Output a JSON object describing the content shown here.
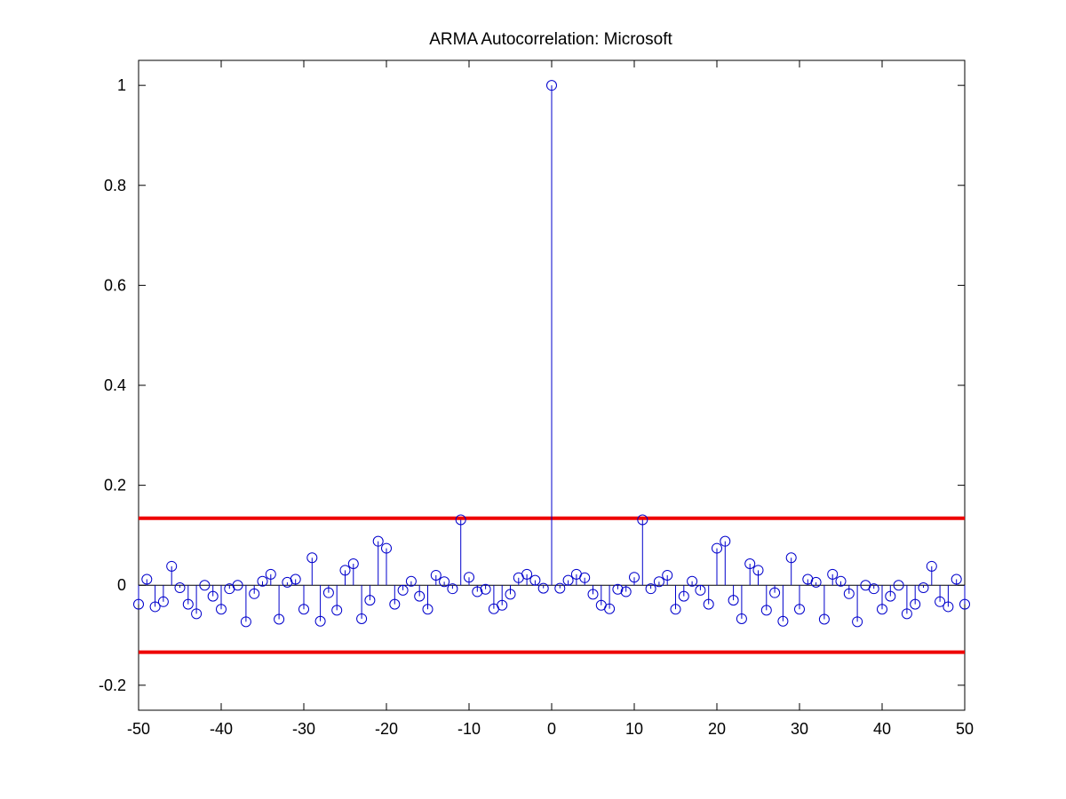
{
  "chart_data": {
    "type": "stem",
    "title": "ARMA Autocorrelation: Microsoft",
    "xlabel": "",
    "ylabel": "",
    "xlim": [
      -50,
      50
    ],
    "ylim": [
      -0.25,
      1.05
    ],
    "xticks": [
      -50,
      -40,
      -30,
      -20,
      -10,
      0,
      10,
      20,
      30,
      40,
      50
    ],
    "yticks": [
      -0.2,
      0,
      0.2,
      0.4,
      0.6,
      0.8,
      1
    ],
    "ytick_labels": [
      "-0.2",
      "0",
      "0.2",
      "0.4",
      "0.6",
      "0.8",
      "1"
    ],
    "grid": false,
    "series": [
      {
        "color": "#0000cc",
        "marker": "circle",
        "x": [
          -50,
          -49,
          -48,
          -47,
          -46,
          -45,
          -44,
          -43,
          -42,
          -41,
          -40,
          -39,
          -38,
          -37,
          -36,
          -35,
          -34,
          -33,
          -32,
          -31,
          -30,
          -29,
          -28,
          -27,
          -26,
          -25,
          -24,
          -23,
          -22,
          -21,
          -20,
          -19,
          -18,
          -17,
          -16,
          -15,
          -14,
          -13,
          -12,
          -11,
          -10,
          -9,
          -8,
          -7,
          -6,
          -5,
          -4,
          -3,
          -2,
          -1,
          0,
          1,
          2,
          3,
          4,
          5,
          6,
          7,
          8,
          9,
          10,
          11,
          12,
          13,
          14,
          15,
          16,
          17,
          18,
          19,
          20,
          21,
          22,
          23,
          24,
          25,
          26,
          27,
          28,
          29,
          30,
          31,
          32,
          33,
          34,
          35,
          36,
          37,
          38,
          39,
          40,
          41,
          42,
          43,
          44,
          45,
          46,
          47,
          48,
          49,
          50
        ],
        "y": [
          -0.038,
          0.012,
          -0.043,
          -0.033,
          0.038,
          -0.005,
          -0.038,
          -0.057,
          0.0,
          -0.022,
          -0.048,
          -0.007,
          0.0,
          -0.073,
          -0.017,
          0.008,
          0.022,
          -0.068,
          0.006,
          0.012,
          -0.048,
          0.055,
          -0.072,
          -0.015,
          -0.05,
          0.03,
          0.043,
          -0.067,
          -0.03,
          0.088,
          0.074,
          -0.038,
          -0.01,
          0.008,
          -0.022,
          -0.048,
          0.02,
          0.007,
          -0.007,
          0.131,
          0.016,
          -0.013,
          -0.008,
          -0.047,
          -0.04,
          -0.018,
          0.015,
          0.022,
          0.01,
          -0.006,
          1.0,
          -0.006,
          0.01,
          0.022,
          0.015,
          -0.018,
          -0.04,
          -0.047,
          -0.008,
          -0.013,
          0.016,
          0.131,
          -0.007,
          0.007,
          0.02,
          -0.048,
          -0.022,
          0.008,
          -0.01,
          -0.038,
          0.074,
          0.088,
          -0.03,
          -0.067,
          0.043,
          0.03,
          -0.05,
          -0.015,
          -0.072,
          0.055,
          -0.048,
          0.012,
          0.006,
          -0.068,
          0.022,
          0.008,
          -0.017,
          -0.073,
          0.0,
          -0.007,
          -0.048,
          -0.022,
          0.0,
          -0.057,
          -0.038,
          -0.005,
          0.038,
          -0.033,
          -0.043,
          0.012,
          -0.038
        ]
      }
    ],
    "hlines": [
      {
        "y": 0.134,
        "color": "#ee0000"
      },
      {
        "y": -0.134,
        "color": "#ee0000"
      }
    ]
  }
}
